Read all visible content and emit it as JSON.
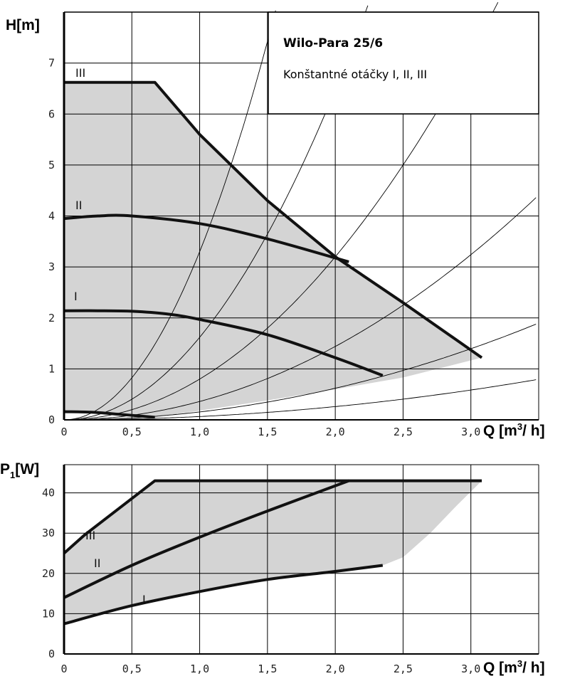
{
  "chart_data": [
    {
      "type": "line",
      "title": "Wilo-Para  25/6",
      "subtitle": "Konštantné otáčky  I, II, III",
      "xlabel": "Q [m³/ h]",
      "ylabel": "H[m]",
      "xlim": [
        0,
        3.5
      ],
      "ylim": [
        0,
        8
      ],
      "xticks": [
        0,
        0.5,
        1.0,
        1.5,
        2.0,
        2.5,
        3.0
      ],
      "xtick_labels": [
        "0",
        "0,5",
        "1,0",
        "1,5",
        "2,0",
        "2,5",
        "3,0"
      ],
      "yticks": [
        0,
        1,
        2,
        3,
        4,
        5,
        6,
        7
      ],
      "ytick_labels": [
        "0",
        "1",
        "2",
        "3",
        "4",
        "5",
        "6",
        "7"
      ],
      "grid": true,
      "shaded_region_color": "#d4d4d4",
      "series": [
        {
          "name": "III",
          "x": [
            0,
            0.67,
            1.0,
            1.5,
            2.0,
            2.5,
            3.08
          ],
          "y": [
            6.62,
            6.62,
            5.6,
            4.3,
            3.2,
            2.3,
            1.22
          ]
        },
        {
          "name": "II",
          "x": [
            0,
            0.25,
            0.5,
            1.0,
            1.5,
            2.1
          ],
          "y": [
            3.95,
            4.0,
            4.0,
            3.85,
            3.55,
            3.1
          ]
        },
        {
          "name": "I",
          "x": [
            0,
            0.25,
            0.5,
            0.75,
            1.0,
            1.5,
            2.0,
            2.35
          ],
          "y": [
            2.14,
            2.14,
            2.13,
            2.08,
            1.97,
            1.67,
            1.22,
            0.87
          ]
        },
        {
          "name": "",
          "x": [
            0,
            0.2,
            0.4,
            0.67
          ],
          "y": [
            0.16,
            0.15,
            0.11,
            0.05
          ]
        }
      ],
      "annotations": [
        "III",
        "II",
        "I"
      ]
    },
    {
      "type": "line",
      "xlabel": "Q [m³/ h]",
      "ylabel": "P1[W]",
      "xlim": [
        0,
        3.5
      ],
      "ylim": [
        0,
        47
      ],
      "xticks": [
        0,
        0.5,
        1.0,
        1.5,
        2.0,
        2.5,
        3.0
      ],
      "xtick_labels": [
        "0",
        "0,5",
        "1,0",
        "1,5",
        "2,0",
        "2,5",
        "3,0"
      ],
      "yticks": [
        0,
        10,
        20,
        30,
        40
      ],
      "ytick_labels": [
        "0",
        "10",
        "20",
        "30",
        "40"
      ],
      "grid": true,
      "series": [
        {
          "name": "III",
          "x": [
            0,
            0.15,
            0.67,
            3.08
          ],
          "y": [
            25,
            29.5,
            43,
            43
          ]
        },
        {
          "name": "II",
          "x": [
            0,
            0.5,
            1.0,
            1.5,
            2.1
          ],
          "y": [
            14,
            22,
            29,
            35.5,
            43
          ]
        },
        {
          "name": "I",
          "x": [
            0,
            0.5,
            1.0,
            1.5,
            2.0,
            2.35
          ],
          "y": [
            7.5,
            12,
            15.5,
            18.5,
            20.5,
            22
          ]
        }
      ],
      "annotations": [
        "III",
        "II",
        "I"
      ]
    }
  ],
  "labels": {
    "top_ylabel": "H[m]",
    "bottom_ylabel_main": "P",
    "bottom_ylabel_sub": "1",
    "bottom_ylabel_unit": "[W]",
    "xlabel_main": "Q [m",
    "xlabel_sup": "3",
    "xlabel_end": "/ h]"
  }
}
